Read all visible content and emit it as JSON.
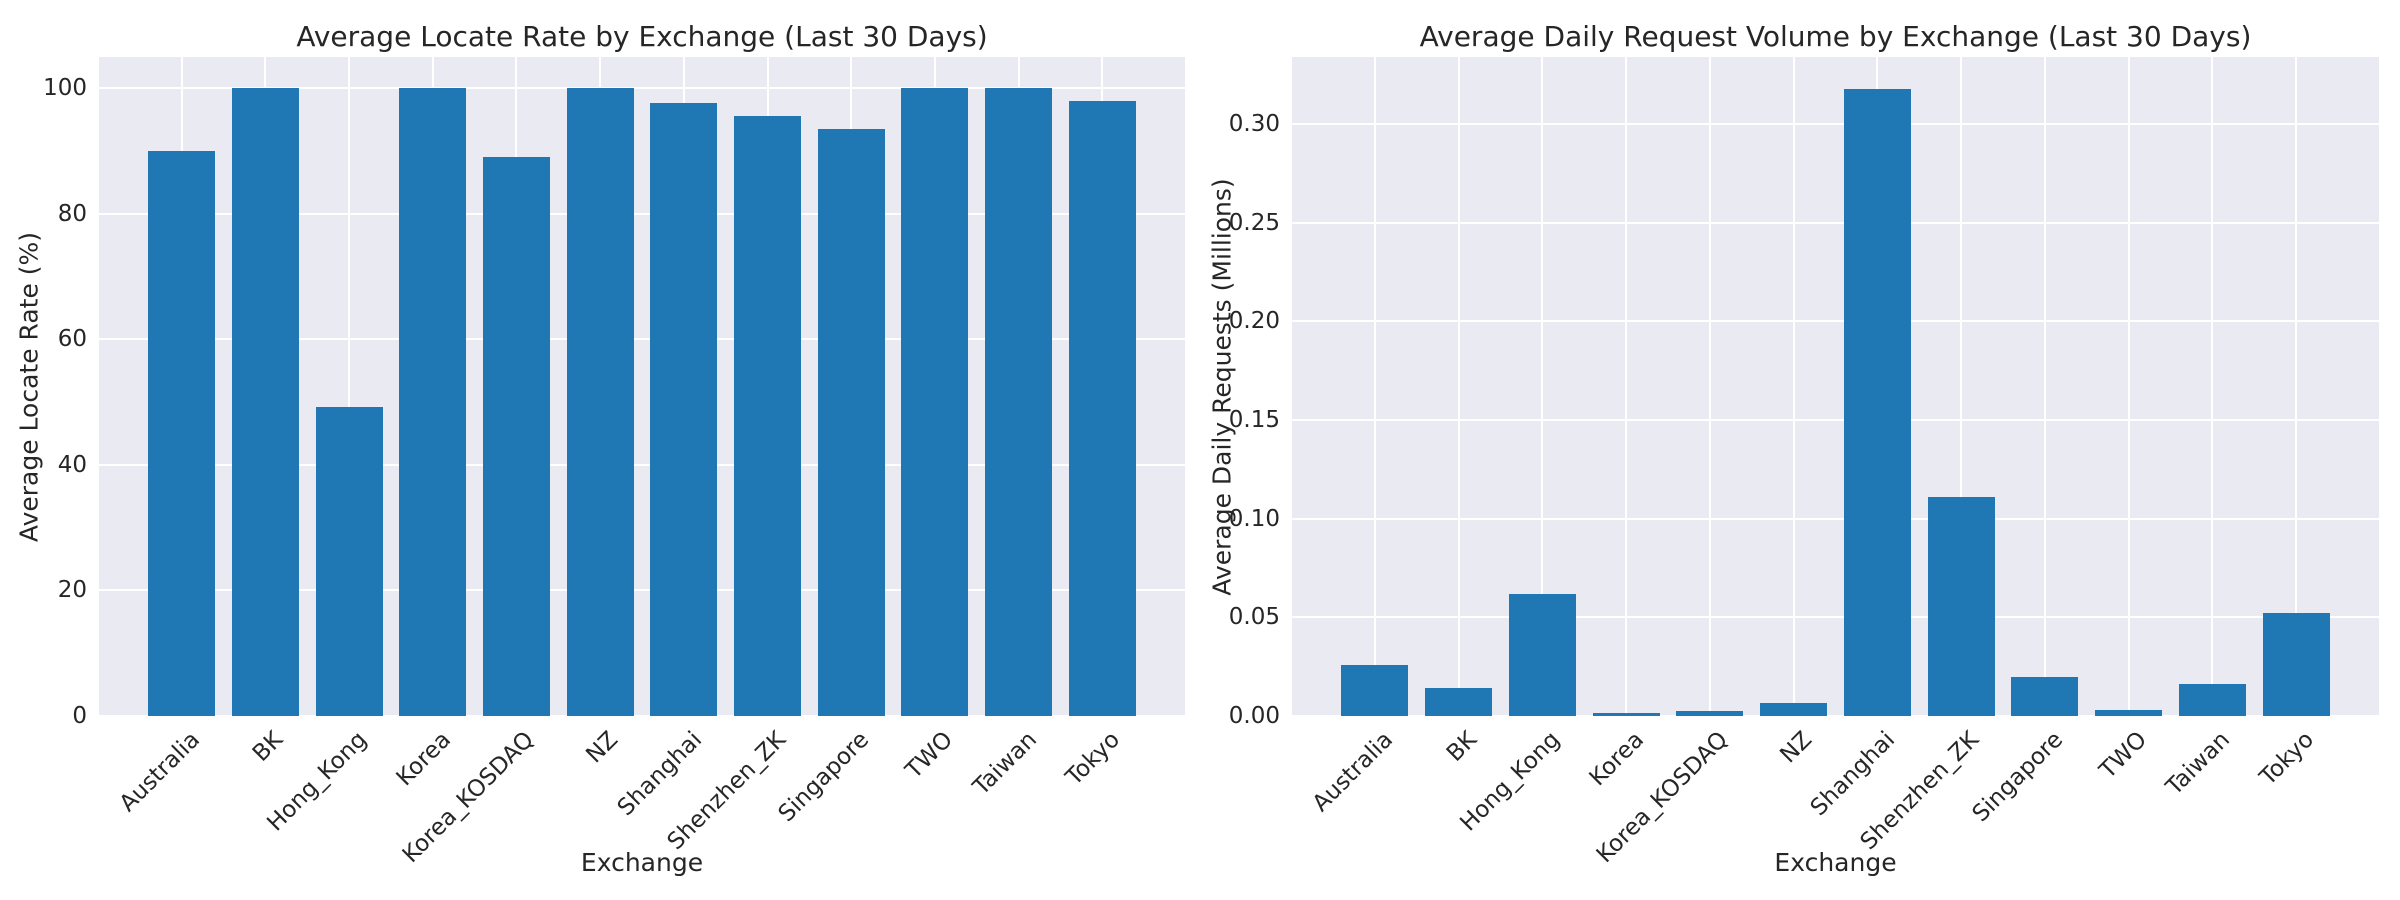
{
  "figure": {
    "background": "#ffffff"
  },
  "style": {
    "plot_background": "#eaeaf2",
    "grid_color": "#ffffff",
    "bar_color": "#1f77b4",
    "text_color": "#262626"
  },
  "chart_data": [
    {
      "type": "bar",
      "title": "Average Locate Rate by Exchange (Last 30 Days)",
      "xlabel": "Exchange",
      "ylabel": "Average Locate Rate (%)",
      "categories": [
        "Australia",
        "BK",
        "Hong_Kong",
        "Korea",
        "Korea_KOSDAQ",
        "NZ",
        "Shanghai",
        "Shenzhen_ZK",
        "Singapore",
        "TWO",
        "Taiwan",
        "Tokyo"
      ],
      "values": [
        90.1,
        100,
        49.3,
        100,
        89.0,
        100,
        97.7,
        95.6,
        93.6,
        100,
        100,
        98.0
      ],
      "ylim": [
        0,
        105
      ],
      "ytick_labels": [
        "0",
        "20",
        "40",
        "60",
        "80",
        "100"
      ],
      "ytick_values": [
        0,
        20,
        40,
        60,
        80,
        100
      ],
      "grid": "on",
      "legend": "none",
      "bar_color": "#1f77b4"
    },
    {
      "type": "bar",
      "title": "Average Daily Request Volume by Exchange (Last 30 Days)",
      "xlabel": "Exchange",
      "ylabel": "Average Daily Requests (Millions)",
      "categories": [
        "Australia",
        "BK",
        "Hong_Kong",
        "Korea",
        "Korea_KOSDAQ",
        "NZ",
        "Shanghai",
        "Shenzhen_ZK",
        "Singapore",
        "TWO",
        "Taiwan",
        "Tokyo"
      ],
      "values": [
        0.026,
        0.014,
        0.062,
        0.0015,
        0.0023,
        0.0068,
        0.318,
        0.111,
        0.02,
        0.003,
        0.016,
        0.052
      ],
      "ylim": [
        0,
        0.334
      ],
      "ytick_labels": [
        "0.00",
        "0.05",
        "0.10",
        "0.15",
        "0.20",
        "0.25",
        "0.30"
      ],
      "ytick_values": [
        0.0,
        0.05,
        0.1,
        0.15,
        0.2,
        0.25,
        0.3
      ],
      "grid": "on",
      "legend": "none",
      "bar_color": "#1f77b4"
    }
  ]
}
